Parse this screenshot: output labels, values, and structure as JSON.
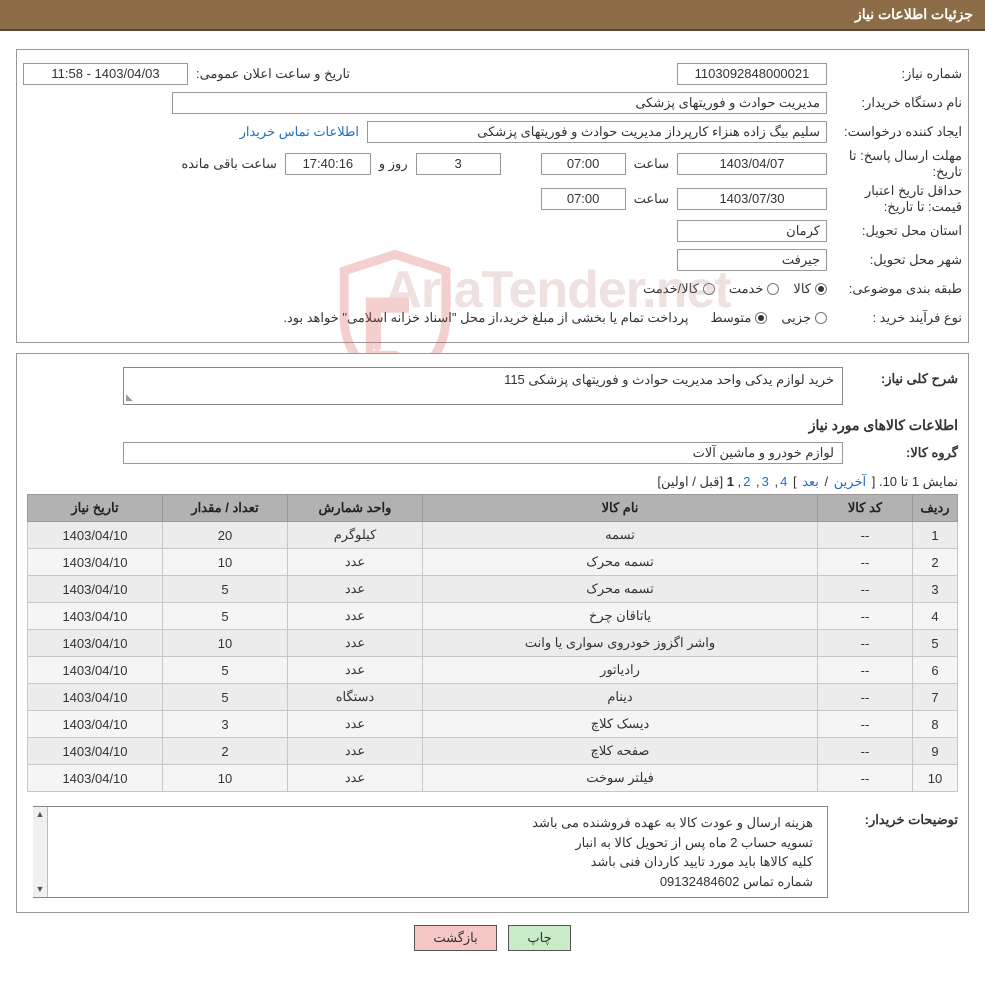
{
  "header": {
    "title": "جزئیات اطلاعات نیاز"
  },
  "form": {
    "need_no_label": "شماره نیاز:",
    "need_no": "1103092848000021",
    "announce_label": "تاریخ و ساعت اعلان عمومی:",
    "announce_value": "1403/04/03 - 11:58",
    "buyer_label": "نام دستگاه خریدار:",
    "buyer_value": "مدیریت حوادث و فوریتهای پزشکی",
    "requester_label": "ایجاد کننده درخواست:",
    "requester_value": "سلیم بیگ زاده هنزاء کارپرداز  مدیریت حوادث و فوریتهای پزشکی",
    "contact_link": "اطلاعات تماس خریدار",
    "deadline_label": "مهلت ارسال پاسخ: تا تاریخ:",
    "deadline_date": "1403/04/07",
    "hour_label": "ساعت",
    "deadline_hour": "07:00",
    "days_value": "3",
    "days_label": "روز و",
    "countdown": "17:40:16",
    "remain_label": "ساعت باقی مانده",
    "validity_label": "حداقل تاریخ اعتبار قیمت: تا تاریخ:",
    "validity_date": "1403/07/30",
    "validity_hour": "07:00",
    "province_label": "استان محل تحویل:",
    "province_value": "کرمان",
    "city_label": "شهر محل تحویل:",
    "city_value": "جیرفت",
    "category_label": "طبقه بندی موضوعی:",
    "cat_opts": [
      "کالا",
      "خدمت",
      "کالا/خدمت"
    ],
    "process_label": "نوع فرآیند خرید :",
    "proc_opts": [
      "جزیی",
      "متوسط"
    ],
    "payment_note": "پرداخت تمام یا بخشی از مبلغ خرید،از محل \"اسناد خزانه اسلامی\" خواهد بود."
  },
  "watermark": "AriaTender.net",
  "need": {
    "desc_label": "شرح کلی نیاز:",
    "desc_value": "خرید لوازم یدکی واحد مدیریت حوادث و فوریتهای پزشکی 115",
    "items_header": "اطلاعات کالاهای مورد نیاز",
    "group_label": "گروه کالا:",
    "group_value": "لوازم خودرو و ماشین آلات"
  },
  "pager": {
    "text_prefix": "نمایش 1 تا 10. [",
    "last": "آخرین",
    "sep1": " / ",
    "next": "بعد",
    "sep2": "] ",
    "pages": [
      "4",
      "3",
      "2"
    ],
    "current": "1",
    "suffix": " [قبل / اولین]"
  },
  "table": {
    "headers": [
      "ردیف",
      "کد کالا",
      "نام کالا",
      "واحد شمارش",
      "تعداد / مقدار",
      "تاریخ نیاز"
    ],
    "rows": [
      [
        "1",
        "--",
        "تسمه",
        "کیلوگرم",
        "20",
        "1403/04/10"
      ],
      [
        "2",
        "--",
        "تسمه محرک",
        "عدد",
        "10",
        "1403/04/10"
      ],
      [
        "3",
        "--",
        "تسمه محرک",
        "عدد",
        "5",
        "1403/04/10"
      ],
      [
        "4",
        "--",
        "یاتاقان چرخ",
        "عدد",
        "5",
        "1403/04/10"
      ],
      [
        "5",
        "--",
        "واشر اگزوز خودروی سواری یا وانت",
        "عدد",
        "10",
        "1403/04/10"
      ],
      [
        "6",
        "--",
        "رادیاتور",
        "عدد",
        "5",
        "1403/04/10"
      ],
      [
        "7",
        "--",
        "دینام",
        "دستگاه",
        "5",
        "1403/04/10"
      ],
      [
        "8",
        "--",
        "دیسک کلاچ",
        "عدد",
        "3",
        "1403/04/10"
      ],
      [
        "9",
        "--",
        "صفحه کلاچ",
        "عدد",
        "2",
        "1403/04/10"
      ],
      [
        "10",
        "--",
        "فیلتر سوخت",
        "عدد",
        "10",
        "1403/04/10"
      ]
    ]
  },
  "buyer_notes": {
    "label": "توضیحات خریدار:",
    "lines": [
      "هزینه ارسال و عودت کالا به عهده فروشنده می باشد",
      "تسویه حساب 2 ماه پس از تحویل کالا به انبار",
      "کلیه کالاها باید مورد تایید کاردان فنی باشد",
      "شماره تماس 09132484602"
    ]
  },
  "buttons": {
    "print": "چاپ",
    "back": "بازگشت"
  },
  "colors": {
    "header_bg": "#8c6d47",
    "header_border": "#5a4530",
    "panel_border": "#999999",
    "link": "#1f6fc9",
    "th_bg": "#b2b2b2",
    "row_bg": "#f5f5f5",
    "row_alt": "#ececec",
    "btn_print": "#c7ecc7",
    "btn_back": "#f4c6c6",
    "watermark": "#c3938c"
  }
}
